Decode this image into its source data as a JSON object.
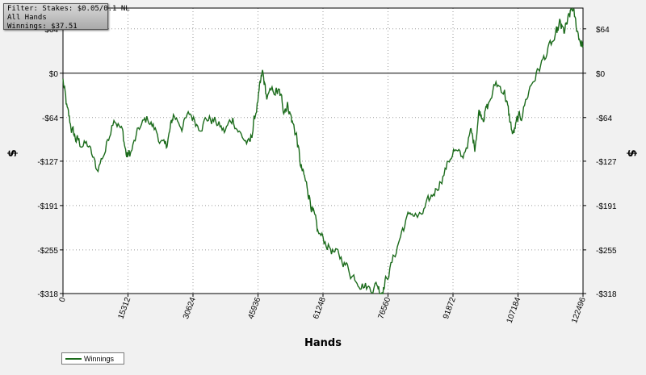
{
  "filter_box": {
    "lines": [
      "Filter: Stakes: $0.05/0.1 NL",
      "All Hands",
      "Winnings: $37.51"
    ]
  },
  "colors": {
    "line": "#1b6b1b",
    "plot_background": "#ffffff",
    "page_background": "#f1f1f1",
    "grid": "#9a9a9a",
    "zero_line": "#000000"
  },
  "chart_data": {
    "type": "line",
    "title": "",
    "xlabel": "Hands",
    "ylabel": "$",
    "xlim": [
      0,
      122496
    ],
    "ylim": [
      -318,
      94
    ],
    "x_ticks": [
      0,
      15312,
      30624,
      45936,
      61248,
      76560,
      91872,
      107184,
      122496
    ],
    "y_ticks": [
      64,
      0,
      -64,
      -127,
      -191,
      -255,
      -318
    ],
    "y_tick_labels": [
      "$64",
      "$0",
      "-$64",
      "-$127",
      "-$191",
      "-$255",
      "-$318"
    ],
    "grid": true,
    "zero_line": true,
    "legend": {
      "position": "bottom-left",
      "entries": [
        "Winnings"
      ]
    },
    "series": [
      {
        "name": "Winnings",
        "x": [
          0,
          1000,
          2000,
          3000,
          4000,
          6000,
          8000,
          10000,
          12000,
          14000,
          15000,
          16000,
          18000,
          20000,
          22000,
          24000,
          25000,
          26000,
          28000,
          30000,
          32000,
          34000,
          36000,
          38000,
          40000,
          42000,
          44000,
          45000,
          46200,
          47000,
          48000,
          50000,
          51000,
          52000,
          53000,
          54000,
          55000,
          56000,
          57000,
          58000,
          59000,
          60000,
          62000,
          64000,
          66000,
          68000,
          70000,
          72000,
          74000,
          75000,
          76000,
          78000,
          80000,
          82000,
          84000,
          86000,
          88000,
          90000,
          92000,
          94000,
          96000,
          97000,
          98000,
          99000,
          100000,
          102000,
          104000,
          105000,
          106000,
          107000,
          108000,
          110000,
          112000,
          114000,
          116000,
          117000,
          118000,
          119000,
          120000,
          121000,
          122000,
          122496
        ],
        "y": [
          -10,
          -55,
          -80,
          -95,
          -100,
          -105,
          -140,
          -110,
          -60,
          -85,
          -120,
          -115,
          -80,
          -65,
          -85,
          -110,
          -90,
          -60,
          -75,
          -60,
          -75,
          -65,
          -70,
          -85,
          -65,
          -90,
          -105,
          -70,
          -30,
          0,
          -35,
          -25,
          -30,
          -50,
          -45,
          -70,
          -90,
          -135,
          -155,
          -175,
          -205,
          -230,
          -245,
          -260,
          -270,
          -290,
          -300,
          -310,
          -305,
          -315,
          -300,
          -265,
          -225,
          -200,
          -210,
          -190,
          -165,
          -140,
          -110,
          -125,
          -85,
          -105,
          -55,
          -60,
          -50,
          -15,
          -25,
          -60,
          -90,
          -70,
          -60,
          -20,
          5,
          30,
          50,
          70,
          58,
          75,
          94,
          65,
          45,
          38
        ]
      }
    ]
  }
}
